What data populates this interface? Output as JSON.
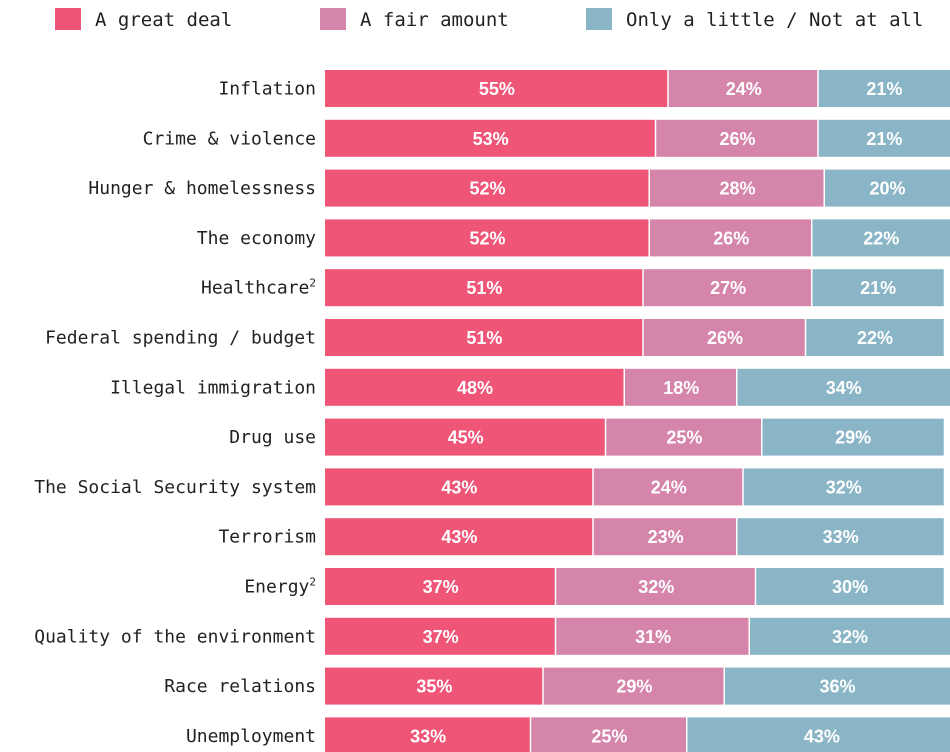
{
  "chart_data": {
    "type": "bar",
    "orientation": "horizontal",
    "stacked": true,
    "legend_position": "top",
    "categories": [
      {
        "label": "Inflation",
        "note": ""
      },
      {
        "label": "Crime & violence",
        "note": ""
      },
      {
        "label": "Hunger & homelessness",
        "note": ""
      },
      {
        "label": "The economy",
        "note": ""
      },
      {
        "label": "Healthcare",
        "note": "2"
      },
      {
        "label": "Federal spending / budget",
        "note": ""
      },
      {
        "label": "Illegal immigration",
        "note": ""
      },
      {
        "label": "Drug use",
        "note": ""
      },
      {
        "label": "The Social Security system",
        "note": ""
      },
      {
        "label": "Terrorism",
        "note": ""
      },
      {
        "label": "Energy",
        "note": "2"
      },
      {
        "label": "Quality of the environment",
        "note": ""
      },
      {
        "label": "Race relations",
        "note": ""
      },
      {
        "label": "Unemployment",
        "note": ""
      }
    ],
    "series": [
      {
        "name": "A great deal",
        "color": "#ef5577",
        "values": [
          55,
          53,
          52,
          52,
          51,
          51,
          48,
          45,
          43,
          43,
          37,
          37,
          35,
          33
        ]
      },
      {
        "name": "A fair amount",
        "color": "#d584aa",
        "values": [
          24,
          26,
          28,
          26,
          27,
          26,
          18,
          25,
          24,
          23,
          32,
          31,
          29,
          25
        ]
      },
      {
        "name": "Only a little / Not at all",
        "color": "#8ab5c6",
        "values": [
          21,
          21,
          20,
          22,
          21,
          22,
          34,
          29,
          32,
          33,
          30,
          32,
          36,
          43
        ]
      }
    ],
    "value_suffix": "%"
  }
}
